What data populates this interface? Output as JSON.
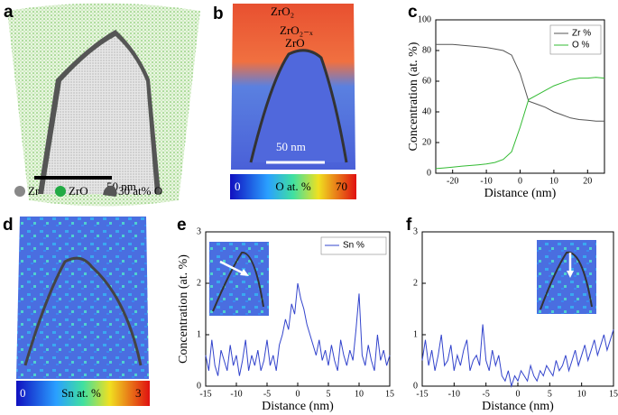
{
  "chart_data": [
    {
      "type": "line",
      "panel_label": "c",
      "x_label": "Distance (nm)",
      "y_label": "Concentration (at. %)",
      "x": [
        -25,
        -22.5,
        -20,
        -17.5,
        -15,
        -12.5,
        -10,
        -7.5,
        -5,
        -2.5,
        0,
        2.5,
        5,
        7.5,
        10,
        12.5,
        15,
        17.5,
        20,
        22.5,
        25
      ],
      "series": [
        {
          "name": "Zr %",
          "color": "#555555",
          "values": [
            84,
            84,
            84,
            83.5,
            83,
            82.5,
            82,
            81,
            80,
            77,
            65,
            47,
            45,
            43,
            40,
            38,
            36,
            35,
            34.5,
            34,
            34
          ]
        },
        {
          "name": "O %",
          "color": "#33bb33",
          "values": [
            3,
            3.5,
            4,
            4.5,
            5,
            5.5,
            6,
            7,
            9,
            14,
            30,
            48,
            51,
            54,
            57,
            59,
            61,
            62,
            62,
            62.5,
            62
          ]
        }
      ],
      "xlim": [
        -25,
        25
      ],
      "xticks": [
        -20,
        -10,
        0,
        10,
        20
      ],
      "ylim": [
        0,
        100
      ],
      "yticks": [
        0,
        20,
        40,
        60,
        80,
        100
      ],
      "legend": "upper right"
    },
    {
      "type": "line",
      "panel_label": "e",
      "x_label": "Distance (nm)",
      "y_label": "Concentration (at. %)",
      "x": [
        -15,
        -14.5,
        -14,
        -13.5,
        -13,
        -12.5,
        -12,
        -11.5,
        -11,
        -10.5,
        -10,
        -9.5,
        -9,
        -8.5,
        -8,
        -7.5,
        -7,
        -6.5,
        -6,
        -5.5,
        -5,
        -4.5,
        -4,
        -3.5,
        -3,
        -2.5,
        -2,
        -1.5,
        -1,
        -0.5,
        0,
        0.5,
        1,
        1.5,
        2,
        2.5,
        3,
        3.5,
        4,
        4.5,
        5,
        5.5,
        6,
        6.5,
        7,
        7.5,
        8,
        8.5,
        9,
        9.5,
        10,
        10.5,
        11,
        11.5,
        12,
        12.5,
        13,
        13.5,
        14,
        14.5,
        15
      ],
      "series": [
        {
          "name": "Sn %",
          "color": "#3344cc",
          "values": [
            0.6,
            0.3,
            0.9,
            0.4,
            0.2,
            0.7,
            0.5,
            0.3,
            0.8,
            0.4,
            0.6,
            0.2,
            0.5,
            0.9,
            0.3,
            0.6,
            0.4,
            0.7,
            0.3,
            0.5,
            0.9,
            0.4,
            0.6,
            0.3,
            0.8,
            1.0,
            1.3,
            1.1,
            1.6,
            1.4,
            2.0,
            1.7,
            1.5,
            1.2,
            1.0,
            0.8,
            0.6,
            0.9,
            0.5,
            0.7,
            0.4,
            0.8,
            0.5,
            0.3,
            0.9,
            0.6,
            0.4,
            0.7,
            0.5,
            1.1,
            1.8,
            0.6,
            0.4,
            0.8,
            0.5,
            0.3,
            1.0,
            0.5,
            0.7,
            0.4,
            0.6
          ]
        }
      ],
      "xlim": [
        -15,
        15
      ],
      "xticks": [
        -15,
        -10,
        -5,
        0,
        5,
        10,
        15
      ],
      "ylim": [
        0,
        3
      ],
      "yticks": [
        0,
        1,
        2,
        3
      ],
      "legend": "upper right"
    },
    {
      "type": "line",
      "panel_label": "f",
      "x_label": "Distance (nm)",
      "x": [
        -15,
        -14.5,
        -14,
        -13.5,
        -13,
        -12.5,
        -12,
        -11.5,
        -11,
        -10.5,
        -10,
        -9.5,
        -9,
        -8.5,
        -8,
        -7.5,
        -7,
        -6.5,
        -6,
        -5.5,
        -5,
        -4.5,
        -4,
        -3.5,
        -3,
        -2.5,
        -2,
        -1.5,
        -1,
        -0.5,
        0,
        0.5,
        1,
        1.5,
        2,
        2.5,
        3,
        3.5,
        4,
        4.5,
        5,
        5.5,
        6,
        6.5,
        7,
        7.5,
        8,
        8.5,
        9,
        9.5,
        10,
        10.5,
        11,
        11.5,
        12,
        12.5,
        13,
        13.5,
        14,
        14.5,
        15
      ],
      "series": [
        {
          "color": "#3344cc",
          "values": [
            0.5,
            0.9,
            0.4,
            0.7,
            0.3,
            0.6,
            1.0,
            0.4,
            0.5,
            0.8,
            0.3,
            0.6,
            0.4,
            0.7,
            0.9,
            0.3,
            0.5,
            0.6,
            0.4,
            1.2,
            0.5,
            0.3,
            0.7,
            0.4,
            0.6,
            0.2,
            0.1,
            0.3,
            0.0,
            0.2,
            0.1,
            0.3,
            0.2,
            0.1,
            0.4,
            0.2,
            0.1,
            0.3,
            0.2,
            0.4,
            0.3,
            0.2,
            0.5,
            0.3,
            0.4,
            0.6,
            0.3,
            0.5,
            0.7,
            0.4,
            0.6,
            0.8,
            0.5,
            0.7,
            0.9,
            0.6,
            0.8,
            1.0,
            0.7,
            0.9,
            1.1
          ]
        }
      ],
      "xlim": [
        -15,
        15
      ],
      "xticks": [
        -15,
        -10,
        -5,
        0,
        5,
        10,
        15
      ],
      "ylim": [
        0,
        3
      ],
      "yticks": [
        0,
        1,
        2,
        3
      ]
    }
  ],
  "images": {
    "a": {
      "label": "a",
      "scale_bar": "50 nm",
      "legend": [
        "Zr",
        "ZrO",
        "30 at% O"
      ]
    },
    "b": {
      "label": "b",
      "phases": [
        "ZrO₂",
        "ZrO₂₋ₓ",
        "ZrO"
      ],
      "scale_bar": "50 nm",
      "colorbar": {
        "min": 0,
        "title": "O at. %",
        "max": 70
      }
    },
    "d": {
      "label": "d",
      "colorbar": {
        "min": 0,
        "title": "Sn at. %",
        "max": 3
      }
    }
  }
}
